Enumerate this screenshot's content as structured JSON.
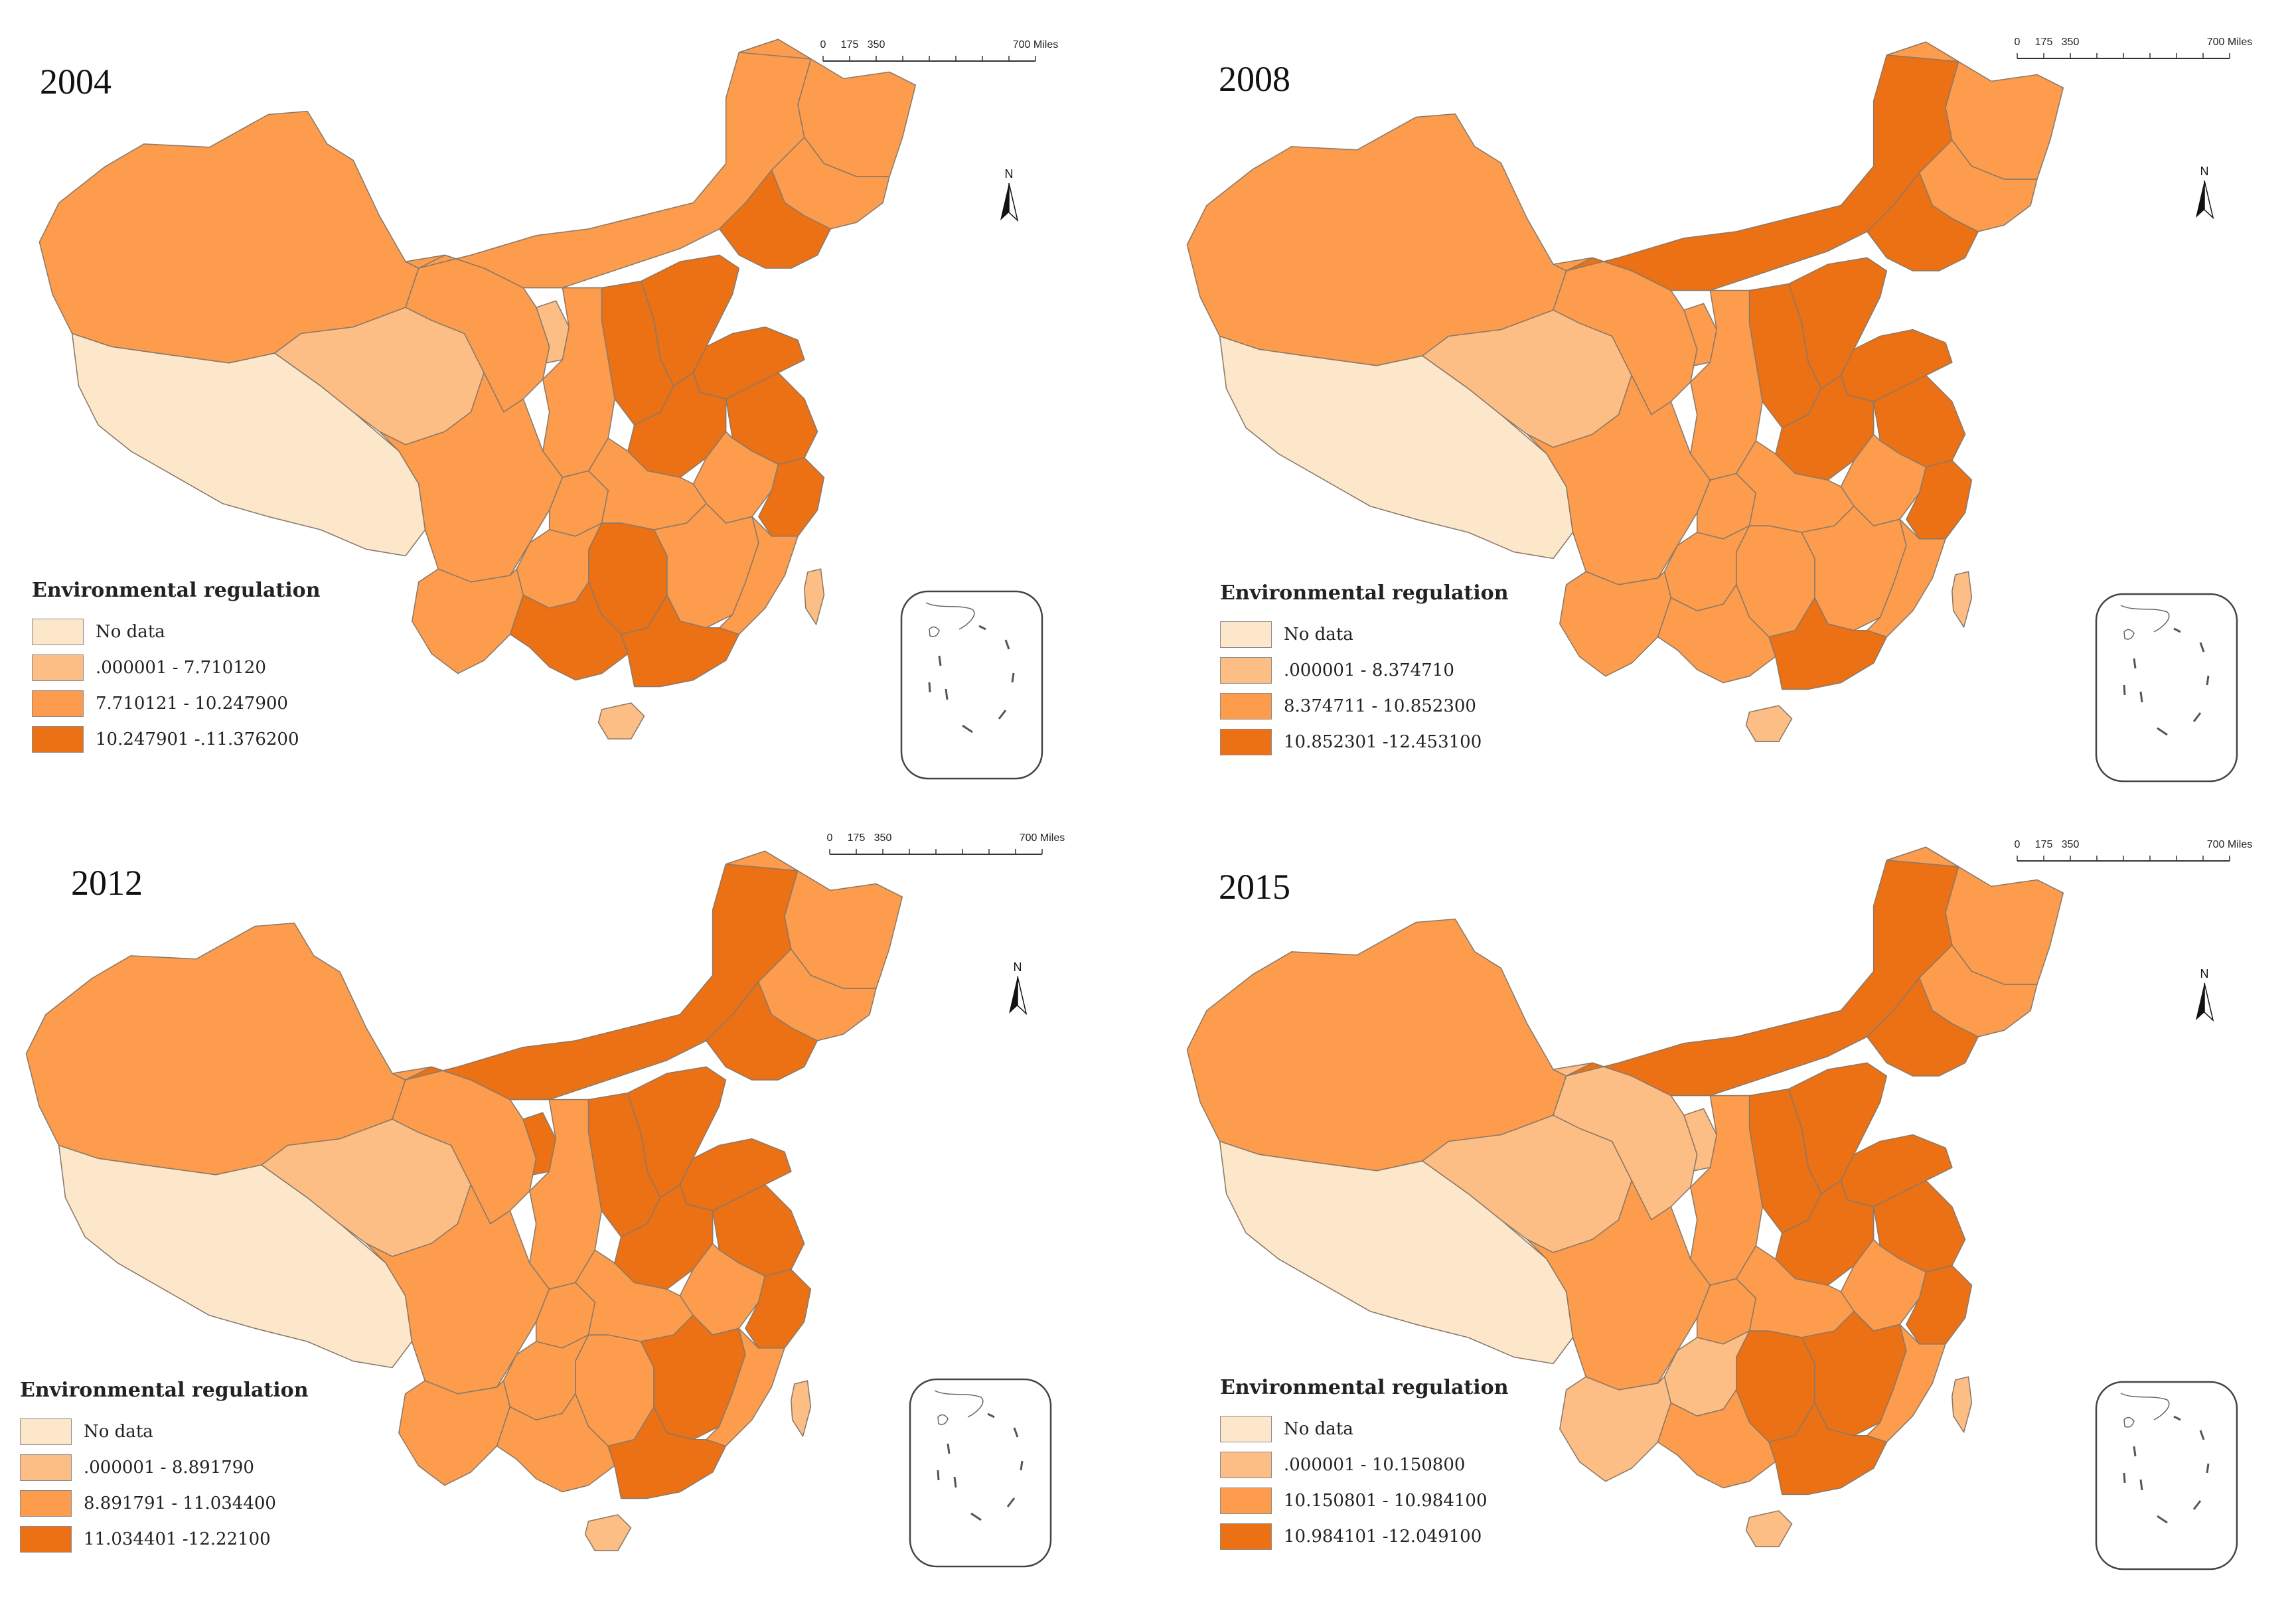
{
  "legend_title": "Environmental regulation",
  "scale_labels": [
    "0",
    "175",
    "350",
    "700 Miles"
  ],
  "north_label": "N",
  "colors": {
    "no_data": "#fde7cb",
    "class1": "#fdbe85",
    "class2": "#fd9c4c",
    "class3": "#ec7014",
    "border": "#8a7a6a"
  },
  "panels": [
    {
      "year": "2004",
      "legend": [
        {
          "label": "No data",
          "class": "no_data"
        },
        {
          "label": ".000001 - 7.710120",
          "class": "class1"
        },
        {
          "label": "7.710121 - 10.247900",
          "class": "class2"
        },
        {
          "label": "10.247901 -.11.376200",
          "class": "class3"
        }
      ],
      "regions": {
        "xinjiang": "class2",
        "tibet": "no_data",
        "qinghai": "class1",
        "gansu": "class2",
        "inner_mongolia": "class2",
        "heilongjiang": "class2",
        "jilin": "class2",
        "liaoning": "class3",
        "beijing_tianjin": "class1",
        "hebei": "class3",
        "shanxi": "class3",
        "shandong": "class3",
        "ningxia": "class1",
        "shaanxi": "class2",
        "henan": "class3",
        "jiangsu": "class3",
        "anhui": "class2",
        "zhejiang": "class3",
        "sichuan": "class2",
        "chongqing": "class2",
        "hubei": "class2",
        "hunan": "class3",
        "jiangxi": "class2",
        "fujian": "class2",
        "yunnan": "class2",
        "guizhou": "class2",
        "guangxi": "class3",
        "guangdong": "class3",
        "hainan": "class1",
        "taiwan": "class1"
      }
    },
    {
      "year": "2008",
      "legend": [
        {
          "label": "No data",
          "class": "no_data"
        },
        {
          "label": ".000001 - 8.374710",
          "class": "class1"
        },
        {
          "label": "8.374711 - 10.852300",
          "class": "class2"
        },
        {
          "label": "10.852301 -12.453100",
          "class": "class3"
        }
      ],
      "regions": {
        "xinjiang": "class2",
        "tibet": "no_data",
        "qinghai": "class1",
        "gansu": "class2",
        "inner_mongolia": "class3",
        "heilongjiang": "class2",
        "jilin": "class2",
        "liaoning": "class3",
        "beijing_tianjin": "class1",
        "hebei": "class3",
        "shanxi": "class3",
        "shandong": "class3",
        "ningxia": "class2",
        "shaanxi": "class2",
        "henan": "class3",
        "jiangsu": "class3",
        "anhui": "class2",
        "zhejiang": "class3",
        "sichuan": "class2",
        "chongqing": "class2",
        "hubei": "class2",
        "hunan": "class2",
        "jiangxi": "class2",
        "fujian": "class2",
        "yunnan": "class2",
        "guizhou": "class2",
        "guangxi": "class2",
        "guangdong": "class3",
        "hainan": "class1",
        "taiwan": "class1"
      }
    },
    {
      "year": "2012",
      "legend": [
        {
          "label": "No data",
          "class": "no_data"
        },
        {
          "label": ".000001 - 8.891790",
          "class": "class1"
        },
        {
          "label": "8.891791 - 11.034400",
          "class": "class2"
        },
        {
          "label": "11.034401 -12.22100",
          "class": "class3"
        }
      ],
      "regions": {
        "xinjiang": "class2",
        "tibet": "no_data",
        "qinghai": "class1",
        "gansu": "class2",
        "inner_mongolia": "class3",
        "heilongjiang": "class2",
        "jilin": "class2",
        "liaoning": "class3",
        "beijing_tianjin": "class1",
        "hebei": "class3",
        "shanxi": "class3",
        "shandong": "class3",
        "ningxia": "class3",
        "shaanxi": "class2",
        "henan": "class3",
        "jiangsu": "class3",
        "anhui": "class2",
        "zhejiang": "class3",
        "sichuan": "class2",
        "chongqing": "class2",
        "hubei": "class2",
        "hunan": "class2",
        "jiangxi": "class3",
        "fujian": "class2",
        "yunnan": "class2",
        "guizhou": "class2",
        "guangxi": "class2",
        "guangdong": "class3",
        "hainan": "class1",
        "taiwan": "class1"
      }
    },
    {
      "year": "2015",
      "legend": [
        {
          "label": "No data",
          "class": "no_data"
        },
        {
          "label": ".000001 - 10.150800",
          "class": "class1"
        },
        {
          "label": "10.150801 - 10.984100",
          "class": "class2"
        },
        {
          "label": "10.984101 -12.049100",
          "class": "class3"
        }
      ],
      "regions": {
        "xinjiang": "class2",
        "tibet": "no_data",
        "qinghai": "class1",
        "gansu": "class1",
        "inner_mongolia": "class3",
        "heilongjiang": "class2",
        "jilin": "class2",
        "liaoning": "class3",
        "beijing_tianjin": "class1",
        "hebei": "class3",
        "shanxi": "class3",
        "shandong": "class3",
        "ningxia": "class1",
        "shaanxi": "class2",
        "henan": "class3",
        "jiangsu": "class3",
        "anhui": "class2",
        "zhejiang": "class3",
        "sichuan": "class2",
        "chongqing": "class2",
        "hubei": "class2",
        "hunan": "class3",
        "jiangxi": "class3",
        "fujian": "class2",
        "yunnan": "class1",
        "guizhou": "class1",
        "guangxi": "class2",
        "guangdong": "class3",
        "hainan": "class1",
        "taiwan": "class1"
      }
    }
  ]
}
